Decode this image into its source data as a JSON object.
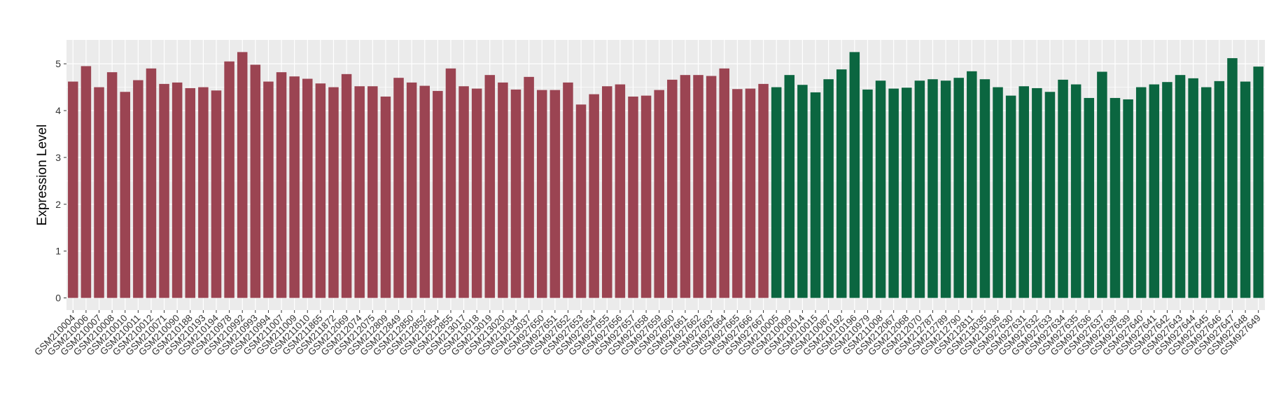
{
  "chart_data": {
    "type": "bar",
    "y_label": "Expression Level",
    "categories": [
      "GSM210004",
      "GSM210006",
      "GSM210007",
      "GSM210008",
      "GSM210010",
      "GSM210011",
      "GSM210012",
      "GSM210071",
      "GSM210090",
      "GSM210188",
      "GSM210193",
      "GSM210194",
      "GSM210978",
      "GSM210992",
      "GSM210993",
      "GSM210994",
      "GSM211007",
      "GSM211009",
      "GSM211010",
      "GSM211865",
      "GSM211872",
      "GSM212069",
      "GSM212074",
      "GSM212075",
      "GSM212809",
      "GSM212849",
      "GSM212850",
      "GSM212852",
      "GSM212854",
      "GSM212855",
      "GSM213017",
      "GSM213018",
      "GSM213019",
      "GSM213020",
      "GSM213034",
      "GSM213037",
      "GSM927650",
      "GSM927651",
      "GSM927652",
      "GSM927653",
      "GSM927654",
      "GSM927655",
      "GSM927656",
      "GSM927657",
      "GSM927658",
      "GSM927659",
      "GSM927660",
      "GSM927661",
      "GSM927662",
      "GSM927663",
      "GSM927664",
      "GSM927665",
      "GSM927666",
      "GSM927667",
      "GSM210005",
      "GSM210009",
      "GSM210014",
      "GSM210015",
      "GSM210087",
      "GSM210192",
      "GSM210196",
      "GSM210979",
      "GSM211008",
      "GSM212067",
      "GSM212068",
      "GSM212070",
      "GSM212787",
      "GSM212789",
      "GSM212790",
      "GSM212811",
      "GSM213035",
      "GSM213036",
      "GSM927630",
      "GSM927631",
      "GSM927632",
      "GSM927633",
      "GSM927634",
      "GSM927635",
      "GSM927636",
      "GSM927637",
      "GSM927638",
      "GSM927639",
      "GSM927640",
      "GSM927641",
      "GSM927642",
      "GSM927643",
      "GSM927644",
      "GSM927645",
      "GSM927646",
      "GSM927647",
      "GSM927648",
      "GSM927649"
    ],
    "values": [
      4.62,
      4.95,
      4.5,
      4.82,
      4.4,
      4.65,
      4.9,
      4.57,
      4.6,
      4.48,
      4.5,
      4.43,
      5.05,
      5.25,
      4.98,
      4.62,
      4.82,
      4.73,
      4.68,
      4.58,
      4.5,
      4.78,
      4.52,
      4.52,
      4.3,
      4.7,
      4.6,
      4.53,
      4.42,
      4.9,
      4.52,
      4.47,
      4.76,
      4.6,
      4.45,
      4.72,
      4.44,
      4.44,
      4.6,
      4.13,
      4.35,
      4.52,
      4.56,
      4.3,
      4.32,
      4.44,
      4.66,
      4.76,
      4.76,
      4.74,
      4.9,
      4.46,
      4.47,
      4.57,
      4.5,
      4.76,
      4.55,
      4.39,
      4.67,
      4.88,
      5.25,
      4.45,
      4.64,
      4.47,
      4.49,
      4.64,
      4.67,
      4.64,
      4.7,
      4.84,
      4.67,
      4.5,
      4.32,
      4.52,
      4.48,
      4.4,
      4.66,
      4.56,
      4.27,
      4.83,
      4.27,
      4.24,
      4.5,
      4.56,
      4.61,
      4.76,
      4.69,
      4.5,
      4.63,
      5.12,
      4.62,
      4.94
    ],
    "colors": [
      "#9b4452",
      "#9b4452",
      "#9b4452",
      "#9b4452",
      "#9b4452",
      "#9b4452",
      "#9b4452",
      "#9b4452",
      "#9b4452",
      "#9b4452",
      "#9b4452",
      "#9b4452",
      "#9b4452",
      "#9b4452",
      "#9b4452",
      "#9b4452",
      "#9b4452",
      "#9b4452",
      "#9b4452",
      "#9b4452",
      "#9b4452",
      "#9b4452",
      "#9b4452",
      "#9b4452",
      "#9b4452",
      "#9b4452",
      "#9b4452",
      "#9b4452",
      "#9b4452",
      "#9b4452",
      "#9b4452",
      "#9b4452",
      "#9b4452",
      "#9b4452",
      "#9b4452",
      "#9b4452",
      "#9b4452",
      "#9b4452",
      "#9b4452",
      "#9b4452",
      "#9b4452",
      "#9b4452",
      "#9b4452",
      "#9b4452",
      "#9b4452",
      "#9b4452",
      "#9b4452",
      "#9b4452",
      "#9b4452",
      "#9b4452",
      "#9b4452",
      "#9b4452",
      "#9b4452",
      "#9b4452",
      "#0b6640",
      "#0b6640",
      "#0b6640",
      "#0b6640",
      "#0b6640",
      "#0b6640",
      "#0b6640",
      "#0b6640",
      "#0b6640",
      "#0b6640",
      "#0b6640",
      "#0b6640",
      "#0b6640",
      "#0b6640",
      "#0b6640",
      "#0b6640",
      "#0b6640",
      "#0b6640",
      "#0b6640",
      "#0b6640",
      "#0b6640",
      "#0b6640",
      "#0b6640",
      "#0b6640",
      "#0b6640",
      "#0b6640",
      "#0b6640",
      "#0b6640",
      "#0b6640",
      "#0b6640",
      "#0b6640",
      "#0b6640",
      "#0b6640",
      "#0b6640",
      "#0b6640",
      "#0b6640",
      "#0b6640",
      "#0b6640"
    ],
    "ylim": [
      -0.26,
      5.51
    ],
    "yticks": [
      0,
      1,
      2,
      3,
      4,
      5
    ],
    "grid": true
  }
}
